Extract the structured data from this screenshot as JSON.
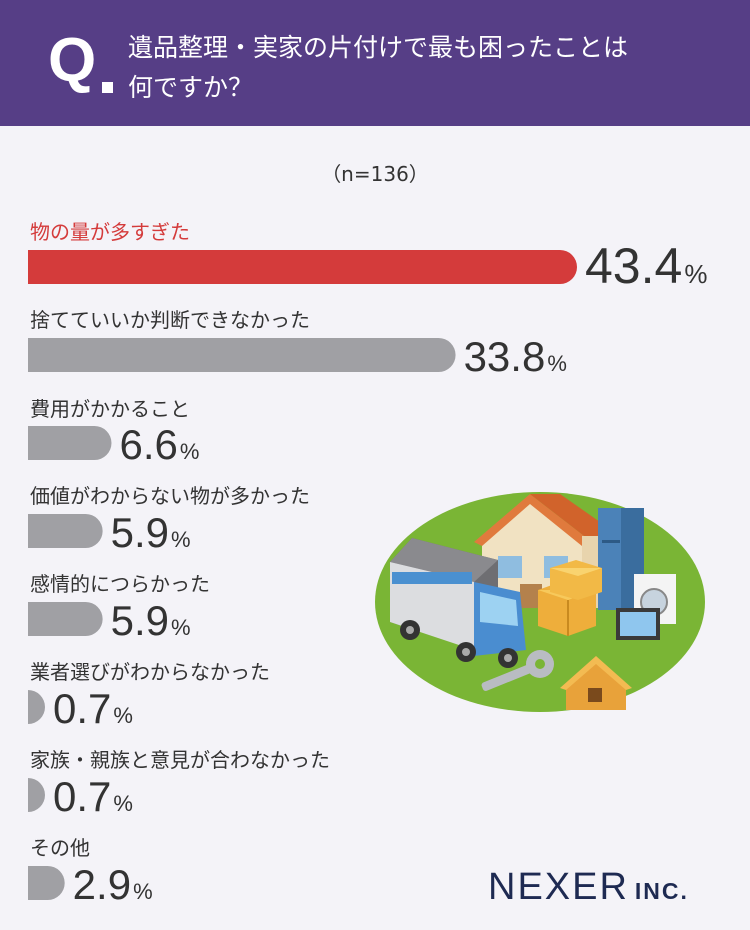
{
  "header": {
    "q_mark": "Q",
    "question_line1": "遺品整理・実家の片付けで最も困ったことは",
    "question_line2": "何ですか？"
  },
  "sample_size": "（n=136）",
  "chart_data": {
    "type": "bar",
    "orientation": "horizontal",
    "unit": "%",
    "categories": [
      "物の量が多すぎた",
      "捨てていいか判断できなかった",
      "費用がかかること",
      "価値がわからない物が多かった",
      "感情的につらかった",
      "業者選びがわからなかった",
      "家族・親族と意見が合わなかった",
      "その他"
    ],
    "values": [
      43.4,
      33.8,
      6.6,
      5.9,
      5.9,
      0.7,
      0.7,
      2.9
    ],
    "value_labels": [
      "43.4",
      "33.8",
      "6.6",
      "5.9",
      "5.9",
      "0.7",
      "0.7",
      "2.9"
    ],
    "highlight_index": 0,
    "colors": {
      "highlight": "#d43b3b",
      "default": "#a0a0a4"
    }
  },
  "brand": {
    "name": "NEXER",
    "suffix": "INC."
  }
}
